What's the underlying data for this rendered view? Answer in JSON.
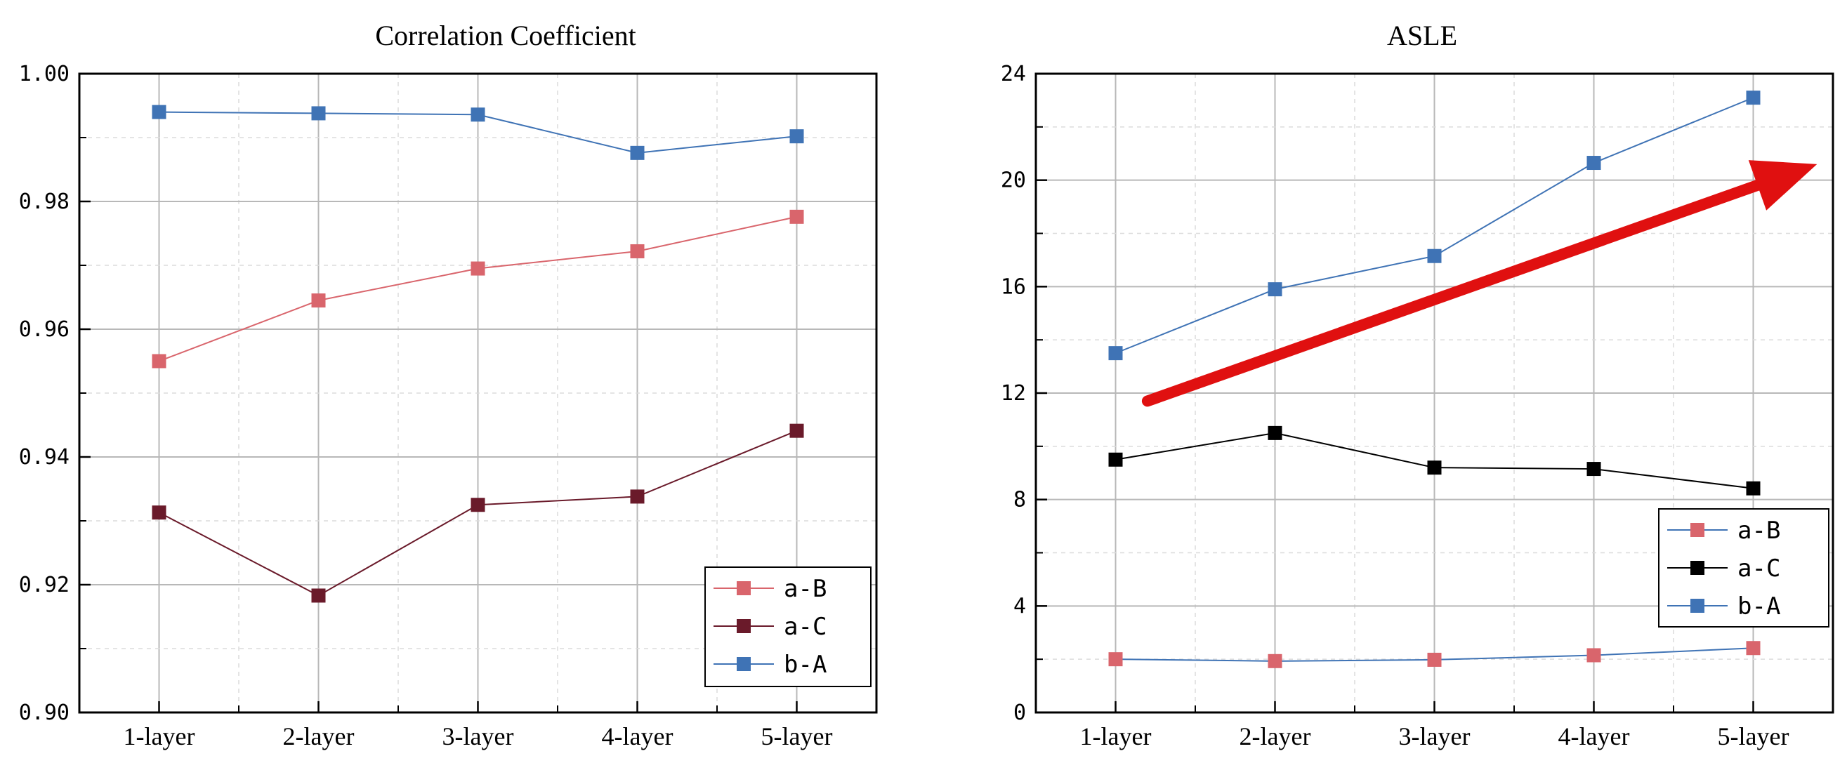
{
  "chart_data": [
    {
      "type": "line",
      "title": "Correlation Coefficient",
      "categories": [
        "1-layer",
        "2-layer",
        "3-layer",
        "4-layer",
        "5-layer"
      ],
      "ylim": [
        0.9,
        1.0
      ],
      "yticks": [
        "0.90",
        "0.92",
        "0.94",
        "0.96",
        "0.98",
        "1.00"
      ],
      "legend_position": "bottom-right",
      "grid": true,
      "series": [
        {
          "name": "a-B",
          "color": "#d9656c",
          "values": [
            0.955,
            0.9645,
            0.9695,
            0.9722,
            0.9776
          ]
        },
        {
          "name": "a-C",
          "color": "#6a1a2a",
          "values": [
            0.9313,
            0.9183,
            0.9325,
            0.9338,
            0.9441
          ]
        },
        {
          "name": "b-A",
          "color": "#3f73b5",
          "values": [
            0.994,
            0.9938,
            0.9936,
            0.9876,
            0.9902
          ]
        }
      ]
    },
    {
      "type": "line",
      "title": "ASLE",
      "categories": [
        "1-layer",
        "2-layer",
        "3-layer",
        "4-layer",
        "5-layer"
      ],
      "ylim": [
        0,
        24
      ],
      "yticks": [
        "0",
        "4",
        "8",
        "12",
        "16",
        "20",
        "24"
      ],
      "legend_position": "bottom-right",
      "grid": true,
      "arrow": {
        "from": [
          0.2,
          11.7
        ],
        "to": [
          4.4,
          20.6
        ],
        "color": "#e01010"
      },
      "series": [
        {
          "name": "a-B",
          "color": "#d9656c",
          "line_color": "#3f73b5",
          "values": [
            2.0,
            1.93,
            1.98,
            2.15,
            2.42
          ]
        },
        {
          "name": "a-C",
          "color": "#000000",
          "values": [
            9.5,
            10.5,
            9.2,
            9.15,
            8.42
          ]
        },
        {
          "name": "b-A",
          "color": "#3f73b5",
          "values": [
            13.5,
            15.9,
            17.15,
            20.65,
            23.1
          ]
        }
      ]
    }
  ]
}
